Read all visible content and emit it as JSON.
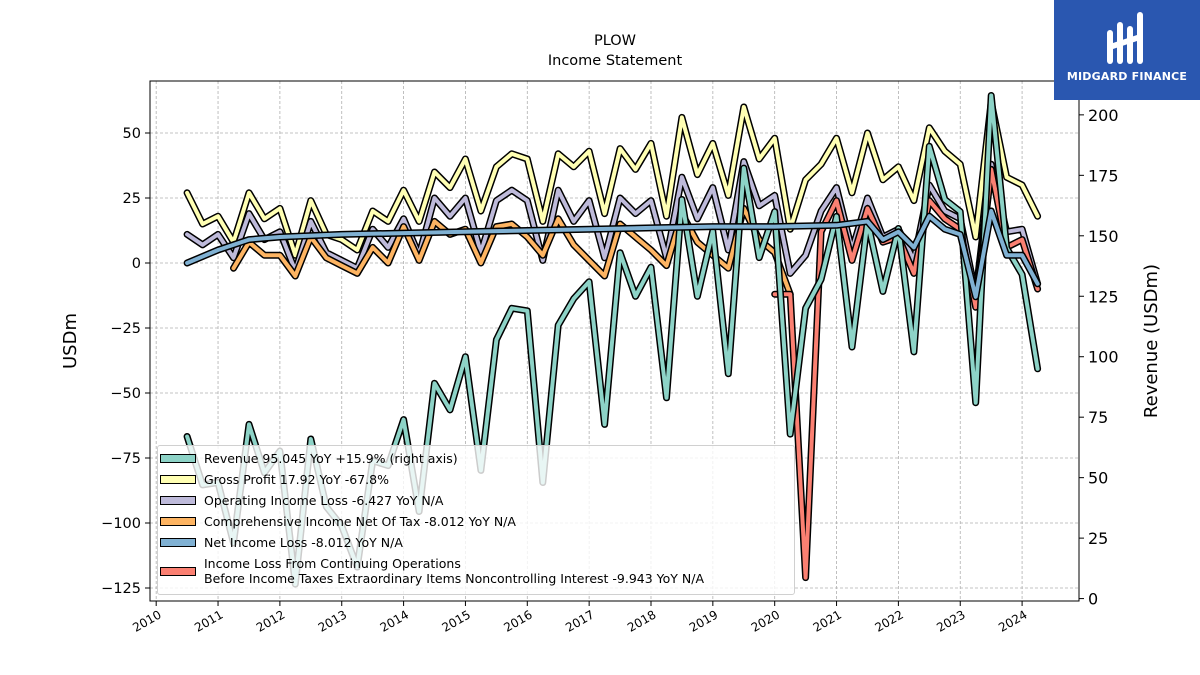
{
  "title": "PLOW",
  "subtitle": "Income Statement",
  "brand": {
    "name": "MIDGARD FINANCE",
    "color": "#2a57b0"
  },
  "chart_data": {
    "type": "line",
    "xlabel": "",
    "ylabel": "USDm",
    "y2label": "Revenue (USDm)",
    "ylim": [
      -130,
      70
    ],
    "y2lim": [
      -1,
      214
    ],
    "xlim": [
      2009.9,
      2024.92
    ],
    "grid": true,
    "legend_position": "lower-left",
    "x_ticks": [
      "2010",
      "2011",
      "2012",
      "2013",
      "2014",
      "2015",
      "2016",
      "2017",
      "2018",
      "2019",
      "2020",
      "2021",
      "2022",
      "2023",
      "2024"
    ],
    "y_ticks": [
      "50",
      "25",
      "0",
      "−25",
      "−50",
      "−75",
      "−100",
      "−125"
    ],
    "y2_ticks": [
      "200",
      "175",
      "150",
      "125",
      "100",
      "75",
      "50",
      "25",
      "0"
    ],
    "series": [
      {
        "name": "Revenue 95.045 YoY +15.9% (right axis)",
        "color": "#8dd3c7",
        "axis": "right",
        "x": [
          2010.5,
          2010.75,
          2011.0,
          2011.25,
          2011.5,
          2011.75,
          2012.0,
          2012.25,
          2012.5,
          2012.75,
          2013.0,
          2013.25,
          2013.5,
          2013.75,
          2014.0,
          2014.25,
          2014.5,
          2014.75,
          2015.0,
          2015.25,
          2015.5,
          2015.75,
          2016.0,
          2016.25,
          2016.5,
          2016.75,
          2017.0,
          2017.25,
          2017.5,
          2017.75,
          2018.0,
          2018.25,
          2018.5,
          2018.75,
          2019.0,
          2019.25,
          2019.5,
          2019.75,
          2020.0,
          2020.25,
          2020.5,
          2020.75,
          2021.0,
          2021.25,
          2021.5,
          2021.75,
          2022.0,
          2022.25,
          2022.5,
          2022.75,
          2023.0,
          2023.25,
          2023.5,
          2023.75,
          2024.0,
          2024.25
        ],
        "values": [
          67,
          47,
          48,
          23,
          72,
          52,
          61,
          6,
          66,
          38,
          30,
          13,
          57,
          55,
          74,
          36,
          89,
          78,
          100,
          53,
          107,
          120,
          119,
          48,
          113,
          124,
          131,
          72,
          143,
          125,
          137,
          83,
          165,
          125,
          152,
          93,
          178,
          141,
          160,
          68,
          120,
          132,
          158,
          104,
          156,
          127,
          153,
          102,
          187,
          165,
          160,
          81,
          208,
          145,
          134,
          95
        ]
      },
      {
        "name": "Gross Profit 17.92 YoY -67.8%",
        "color": "#ffffb3",
        "axis": "left",
        "x": [
          2010.5,
          2010.75,
          2011.0,
          2011.25,
          2011.5,
          2011.75,
          2012.0,
          2012.25,
          2012.5,
          2012.75,
          2013.0,
          2013.25,
          2013.5,
          2013.75,
          2014.0,
          2014.25,
          2014.5,
          2014.75,
          2015.0,
          2015.25,
          2015.5,
          2015.75,
          2016.0,
          2016.25,
          2016.5,
          2016.75,
          2017.0,
          2017.25,
          2017.5,
          2017.75,
          2018.0,
          2018.25,
          2018.5,
          2018.75,
          2019.0,
          2019.25,
          2019.5,
          2019.75,
          2020.0,
          2020.25,
          2020.5,
          2020.75,
          2021.0,
          2021.25,
          2021.5,
          2021.75,
          2022.0,
          2022.25,
          2022.5,
          2022.75,
          2023.0,
          2023.25,
          2023.5,
          2023.75,
          2024.0,
          2024.25
        ],
        "values": [
          27,
          15,
          18,
          8,
          27,
          17,
          21,
          3,
          24,
          11,
          9,
          5,
          20,
          16,
          28,
          16,
          35,
          29,
          40,
          20,
          37,
          42,
          40,
          16,
          42,
          37,
          43,
          19,
          44,
          36,
          46,
          18,
          56,
          34,
          46,
          26,
          60,
          40,
          48,
          13,
          32,
          38,
          48,
          27,
          50,
          32,
          37,
          24,
          52,
          43,
          38,
          10,
          62,
          33,
          30,
          18
        ]
      },
      {
        "name": "Operating Income Loss -6.427 YoY N/A",
        "color": "#bebada",
        "axis": "left",
        "x": [
          2010.5,
          2010.75,
          2011.0,
          2011.25,
          2011.5,
          2011.75,
          2012.0,
          2012.25,
          2012.5,
          2012.75,
          2013.0,
          2013.25,
          2013.5,
          2013.75,
          2014.0,
          2014.25,
          2014.5,
          2014.75,
          2015.0,
          2015.25,
          2015.5,
          2015.75,
          2016.0,
          2016.25,
          2016.5,
          2016.75,
          2017.0,
          2017.25,
          2017.5,
          2017.75,
          2018.0,
          2018.25,
          2018.5,
          2018.75,
          2019.0,
          2019.25,
          2019.5,
          2019.75,
          2020.0,
          2020.25,
          2020.5,
          2020.75,
          2021.0,
          2021.25,
          2021.5,
          2021.75,
          2022.0,
          2022.25,
          2022.5,
          2022.75,
          2023.0,
          2023.25,
          2023.5,
          2023.75,
          2024.0,
          2024.25
        ],
        "values": [
          11,
          7,
          11,
          2,
          19,
          9,
          12,
          -3,
          16,
          4,
          1,
          -2,
          13,
          6,
          17,
          3,
          25,
          18,
          25,
          4,
          24,
          28,
          24,
          1,
          28,
          16,
          24,
          2,
          25,
          19,
          24,
          2,
          33,
          17,
          29,
          5,
          39,
          22,
          26,
          -4,
          3,
          20,
          29,
          5,
          25,
          10,
          13,
          1,
          30,
          20,
          17,
          -12,
          38,
          12,
          13,
          -8
        ]
      },
      {
        "name": "Comprehensive Income Net Of Tax  -8.012 YoY N/A",
        "color": "#fdb462",
        "axis": "left",
        "x": [
          2011.25,
          2011.5,
          2011.75,
          2012.0,
          2012.25,
          2012.5,
          2012.75,
          2013.0,
          2013.25,
          2013.5,
          2013.75,
          2014.0,
          2014.25,
          2014.5,
          2014.75,
          2015.0,
          2015.25,
          2015.5,
          2015.75,
          2016.0,
          2016.25,
          2016.5,
          2016.75,
          2017.0,
          2017.25,
          2017.5,
          2017.75,
          2018.0,
          2018.25,
          2018.5,
          2018.75,
          2019.0,
          2019.25,
          2019.5,
          2019.75,
          2020.0,
          2020.25
        ],
        "values": [
          -2,
          8,
          3,
          3,
          -5,
          10,
          2,
          -1,
          -4,
          6,
          0,
          14,
          1,
          16,
          11,
          13,
          0,
          14,
          15,
          10,
          3,
          17,
          7,
          1,
          -5,
          15,
          10,
          5,
          -1,
          19,
          8,
          3,
          -2,
          21,
          9,
          4,
          -12
        ]
      },
      {
        "name": "Net Income Loss  -8.012 YoY N/A",
        "color": "#80b1d3",
        "axis": "left",
        "x": [
          2010.5,
          2011.0,
          2011.5,
          2012.0,
          2013.0,
          2014.0,
          2015.0,
          2016.0,
          2017.0,
          2018.0,
          2019.0,
          2020.0,
          2021.0,
          2021.5,
          2021.75,
          2022.0,
          2022.25,
          2022.5,
          2022.75,
          2023.0,
          2023.25,
          2023.5,
          2023.75,
          2024.0,
          2024.25
        ],
        "values": [
          0,
          5,
          9,
          10,
          11,
          11.5,
          12,
          12.5,
          13,
          13.5,
          14,
          14,
          14.5,
          16,
          9,
          12,
          6,
          18,
          13,
          11,
          -13,
          20,
          3,
          3,
          -8
        ]
      },
      {
        "name": "Income Loss From Continuing Operations Before Income Taxes Extraordinary Items Noncontrolling Interest  -9.943 YoY N/A",
        "label_lines": [
          "Income Loss From Continuing Operations",
          "Before Income Taxes Extraordinary Items Noncontrolling Interest  -9.943 YoY N/A"
        ],
        "color": "#fb8072",
        "axis": "left",
        "x": [
          2020.0,
          2020.25,
          2020.5,
          2020.75,
          2021.0,
          2021.25,
          2021.5,
          2021.75,
          2022.0,
          2022.25,
          2022.5,
          2022.75,
          2023.0,
          2023.25,
          2023.5,
          2023.75,
          2024.0,
          2024.25
        ],
        "values": [
          -12,
          -12,
          -121,
          12,
          24,
          1,
          21,
          8,
          10,
          -4,
          24,
          17,
          13,
          -17,
          36,
          6,
          9,
          -10
        ]
      }
    ]
  }
}
